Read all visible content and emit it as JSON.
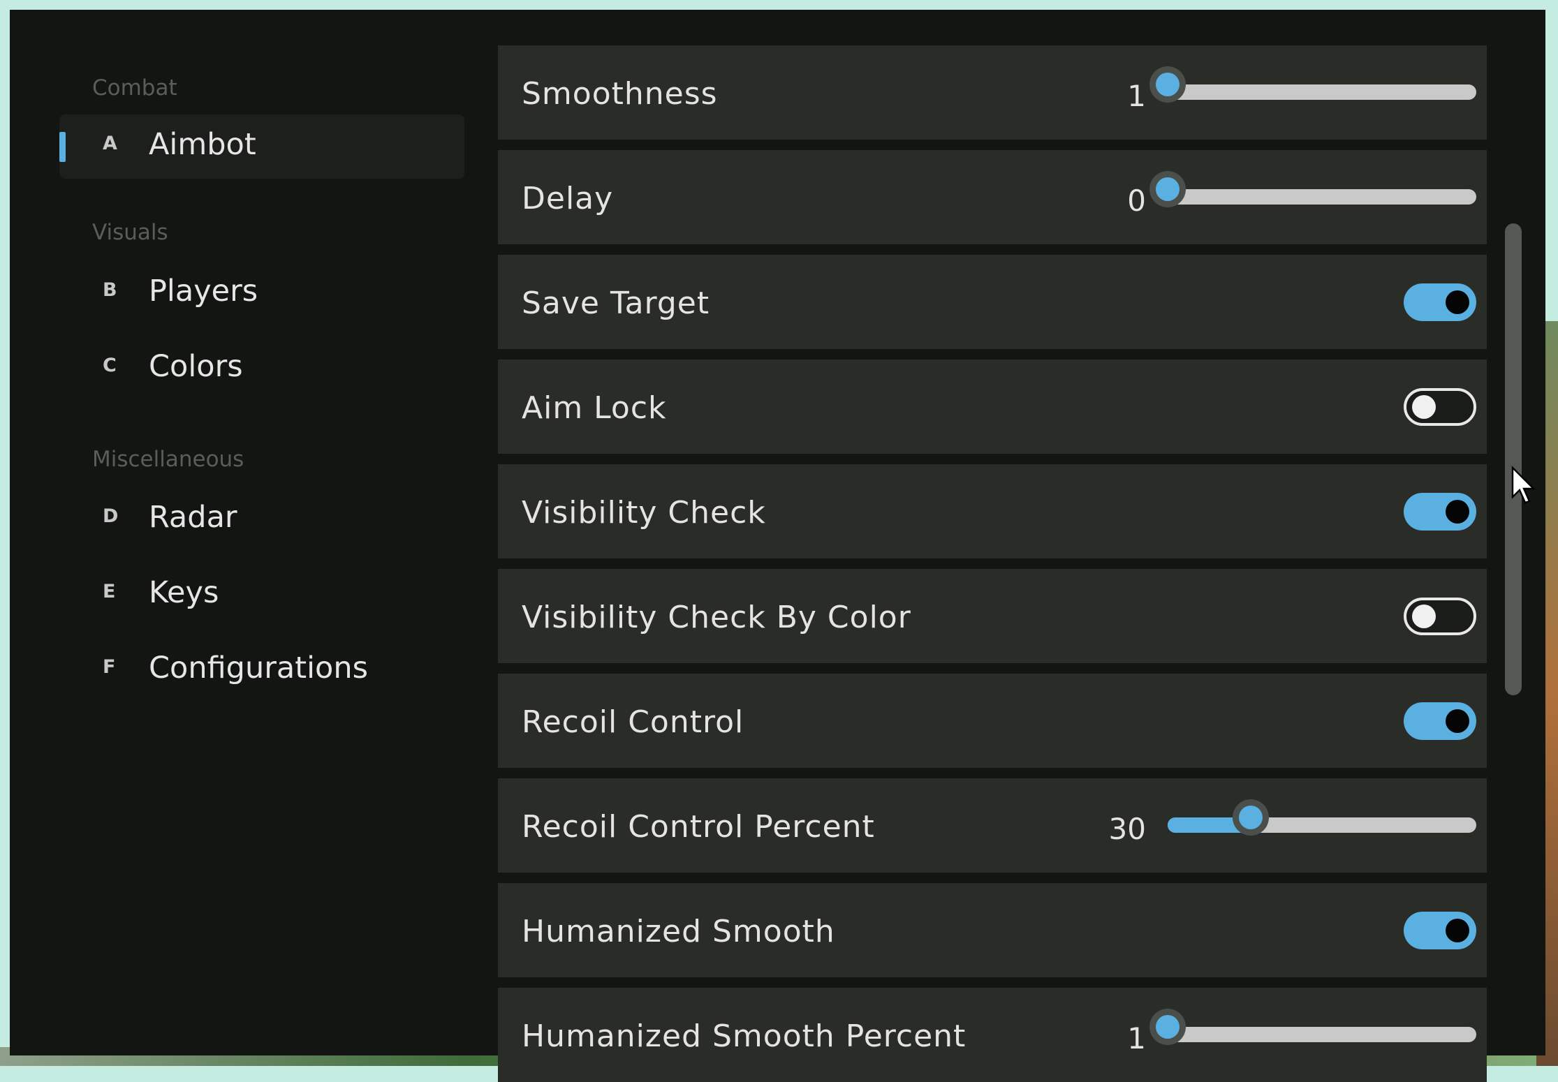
{
  "sidebar": {
    "sections": [
      {
        "title": "Combat",
        "items": [
          {
            "key": "A",
            "label": "Aimbot",
            "active": true
          }
        ]
      },
      {
        "title": "Visuals",
        "items": [
          {
            "key": "B",
            "label": "Players"
          },
          {
            "key": "C",
            "label": "Colors"
          }
        ]
      },
      {
        "title": "Miscellaneous",
        "items": [
          {
            "key": "D",
            "label": "Radar"
          },
          {
            "key": "E",
            "label": "Keys"
          },
          {
            "key": "F",
            "label": "Configurations"
          }
        ]
      }
    ]
  },
  "settings": [
    {
      "label": "Smoothness",
      "type": "slider",
      "value": "1",
      "fraction": 0.0
    },
    {
      "label": "Delay",
      "type": "slider",
      "value": "0",
      "fraction": 0.0
    },
    {
      "label": "Save Target",
      "type": "toggle",
      "on": true
    },
    {
      "label": "Aim Lock",
      "type": "toggle",
      "on": false
    },
    {
      "label": "Visibility Check",
      "type": "toggle",
      "on": true
    },
    {
      "label": "Visibility Check By Color",
      "type": "toggle",
      "on": false
    },
    {
      "label": "Recoil Control",
      "type": "toggle",
      "on": true
    },
    {
      "label": "Recoil Control Percent",
      "type": "slider",
      "value": "30",
      "fraction": 0.27
    },
    {
      "label": "Humanized Smooth",
      "type": "toggle",
      "on": true
    },
    {
      "label": "Humanized Smooth Percent",
      "type": "slider",
      "value": "1",
      "fraction": 0.0
    }
  ],
  "colors": {
    "accent": "#5ab0e0",
    "panel": "#121511",
    "row": "#2a2c28"
  }
}
